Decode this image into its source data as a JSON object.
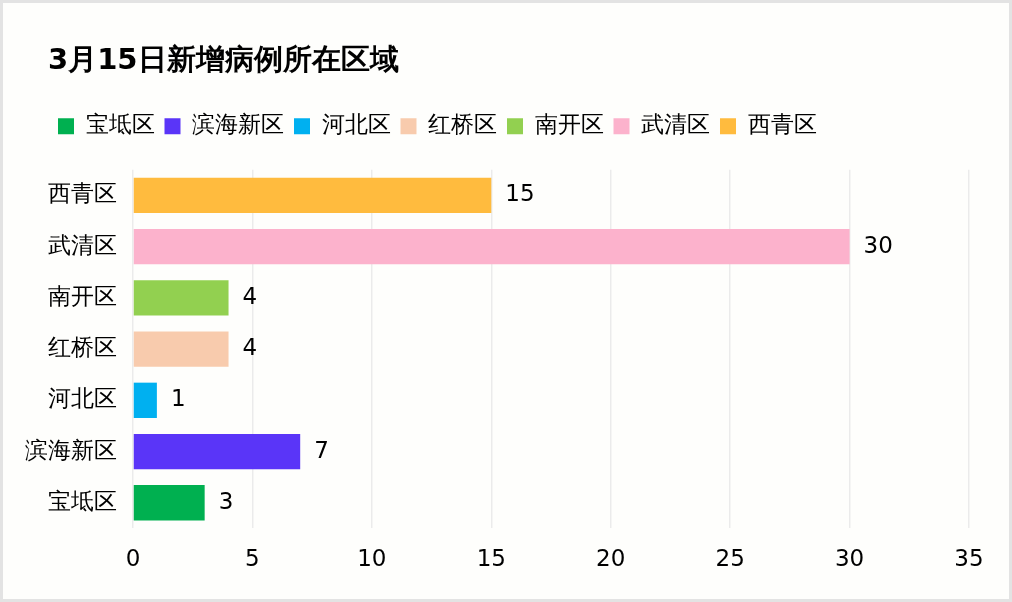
{
  "chart_data": {
    "type": "bar",
    "orientation": "horizontal",
    "title": "3月15日新增病例所在区域",
    "categories": [
      "西青区",
      "武清区",
      "南开区",
      "红桥区",
      "河北区",
      "滨海新区",
      "宝坻区"
    ],
    "series": [
      {
        "name": "宝坻区",
        "color": "#00b050",
        "values": [
          null,
          null,
          null,
          null,
          null,
          null,
          3
        ]
      },
      {
        "name": "滨海新区",
        "color": "#5a35f8",
        "values": [
          null,
          null,
          null,
          null,
          null,
          7,
          null
        ]
      },
      {
        "name": "河北区",
        "color": "#00b0f0",
        "values": [
          null,
          null,
          null,
          null,
          1,
          null,
          null
        ]
      },
      {
        "name": "红桥区",
        "color": "#f8cbad",
        "values": [
          null,
          null,
          null,
          4,
          null,
          null,
          null
        ]
      },
      {
        "name": "南开区",
        "color": "#92d050",
        "values": [
          null,
          null,
          4,
          null,
          null,
          null,
          null
        ]
      },
      {
        "name": "武清区",
        "color": "#fcb2cc",
        "values": [
          null,
          30,
          null,
          null,
          null,
          null,
          null
        ]
      },
      {
        "name": "西青区",
        "color": "#ffbb3e",
        "values": [
          15,
          null,
          null,
          null,
          null,
          null,
          null
        ]
      }
    ],
    "xlim": [
      0,
      35
    ],
    "xticks": [
      0,
      5,
      10,
      15,
      20,
      25,
      30,
      35
    ],
    "grid": "x",
    "legend": "top left",
    "data_labels": true
  }
}
